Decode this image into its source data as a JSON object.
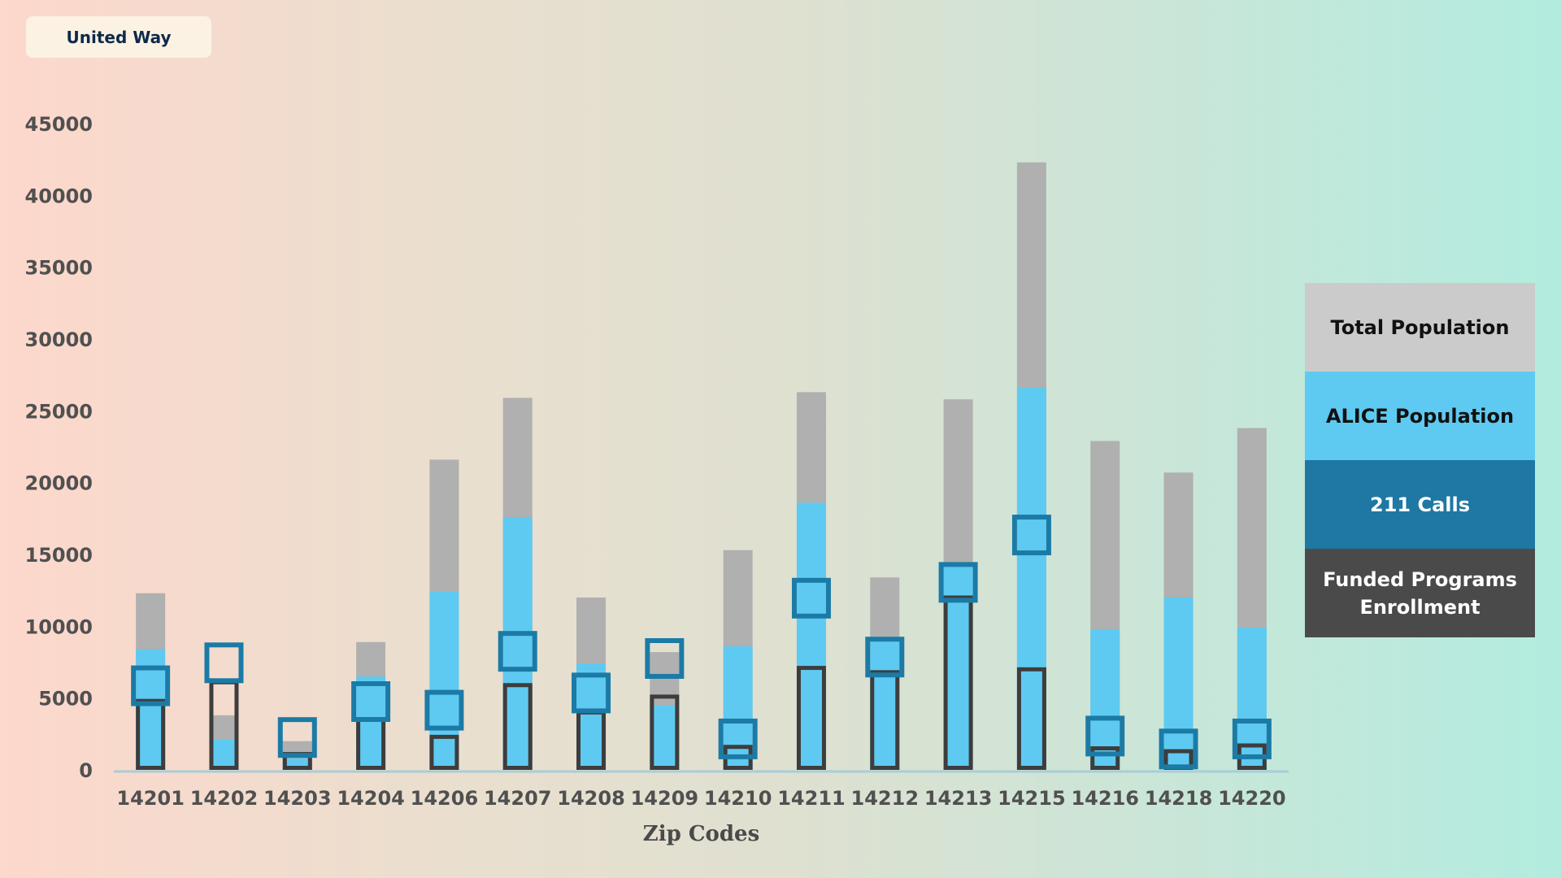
{
  "brand": {
    "label": "United Way"
  },
  "colors": {
    "total": "#b0b0b0",
    "alice": "#5ecaf2",
    "calls": "#1b7ba6",
    "funded": "#3d3d3d",
    "axis": "#a9cdd6"
  },
  "chart_data": {
    "type": "bar",
    "xlabel": "Zip Codes",
    "ylabel": "",
    "ylim": [
      0,
      45000
    ],
    "yticks": [
      0,
      5000,
      10000,
      15000,
      20000,
      25000,
      30000,
      35000,
      40000,
      45000
    ],
    "grid": false,
    "legend_position": "right",
    "categories": [
      "14201",
      "14202",
      "14203",
      "14204",
      "14206",
      "14207",
      "14208",
      "14209",
      "14210",
      "14211",
      "14212",
      "14213",
      "14215",
      "14216",
      "14218",
      "14220"
    ],
    "series": [
      {
        "name": "Total Population",
        "color": "#b0b0b0",
        "values": [
          12300,
          3800,
          2000,
          8900,
          21600,
          25900,
          12000,
          8200,
          15300,
          26300,
          13400,
          25800,
          42300,
          22900,
          20700,
          23800
        ]
      },
      {
        "name": "ALICE Population",
        "color": "#5ecaf2",
        "values": [
          8400,
          2100,
          800,
          6500,
          12400,
          17600,
          7400,
          4500,
          8600,
          18600,
          9200,
          14400,
          26600,
          9800,
          12000,
          9900
        ]
      },
      {
        "name": "211 Calls",
        "color": "#1b7ba6",
        "values": [
          7100,
          8700,
          3500,
          6000,
          5400,
          9500,
          6600,
          9000,
          3400,
          13200,
          9100,
          14300,
          17600,
          3600,
          2700,
          3400
        ]
      },
      {
        "name": "Funded Programs Enrollment",
        "color": "#3d3d3d",
        "values": [
          4800,
          6100,
          1100,
          3500,
          2300,
          5900,
          4000,
          5100,
          1600,
          7100,
          6800,
          12000,
          7000,
          1500,
          1300,
          1700
        ]
      }
    ]
  },
  "legend": {
    "items": [
      {
        "label": "Total Population",
        "bg": "#cbcbcb",
        "fg": "#111111"
      },
      {
        "label": "ALICE Population",
        "bg": "#5ecaf2",
        "fg": "#111111"
      },
      {
        "label": "211 Calls",
        "bg": "#1f77a4",
        "fg": "#ffffff"
      },
      {
        "label": "Funded Programs Enrollment",
        "bg": "#4a4a4a",
        "fg": "#ffffff"
      }
    ]
  }
}
